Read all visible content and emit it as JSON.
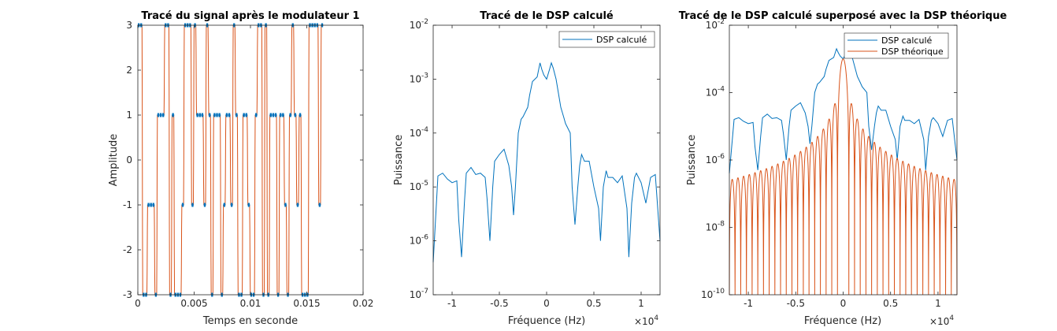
{
  "colors": {
    "blue": "#0072BD",
    "orange": "#D95319"
  },
  "chart_data": [
    {
      "type": "line",
      "title": "Tracé du signal après le modulateur 1",
      "xlabel": "Temps en seconde",
      "ylabel": "Amplitude",
      "xlim": [
        0,
        0.02
      ],
      "ylim": [
        -3,
        3
      ],
      "xticks": [
        0,
        0.005,
        0.01,
        0.015,
        0.02
      ],
      "xtick_labels": [
        "0",
        "0.005",
        "0.01",
        "0.015",
        "0.02"
      ],
      "yticks": [
        -3,
        -2,
        -1,
        0,
        1,
        2,
        3
      ],
      "ytick_labels": [
        "-3",
        "-2",
        "-1",
        "0",
        "1",
        "2",
        "3"
      ],
      "symbol_duration": 0.0005,
      "series": [
        {
          "style": "blue-markers",
          "values": [
            3,
            3,
            -3,
            -3,
            -1,
            -1,
            -1,
            -3,
            1,
            1,
            1,
            3,
            3,
            -3,
            1,
            -3,
            -3,
            -3,
            -1,
            3,
            3,
            3,
            -1,
            3,
            1,
            1,
            1,
            -1,
            3,
            1,
            -3,
            1,
            1,
            1,
            -3,
            -1,
            1,
            1,
            -1,
            3,
            1,
            -3,
            -3,
            1,
            1,
            -1,
            -3,
            -3,
            1,
            3,
            3,
            -3,
            3,
            -3,
            1,
            1,
            1,
            -3,
            1,
            1,
            -1,
            -3,
            1,
            3,
            1,
            -1,
            1,
            -3,
            -3,
            -3,
            3,
            3,
            3,
            3,
            -1,
            3
          ]
        },
        {
          "style": "orange-line",
          "values": [
            3,
            3,
            -3,
            -3,
            -1,
            -1,
            -1,
            -3,
            1,
            1,
            1,
            3,
            3,
            -3,
            1,
            -3,
            -3,
            -3,
            -1,
            3,
            3,
            3,
            -1,
            3,
            1,
            1,
            1,
            -1,
            3,
            1,
            -3,
            1,
            1,
            1,
            -3,
            -1,
            1,
            1,
            -1,
            3,
            1,
            -3,
            -3,
            1,
            1,
            -1,
            -3,
            -3,
            1,
            3,
            3,
            -3,
            3,
            -3,
            1,
            1,
            1,
            -3,
            1,
            1,
            -1,
            -3,
            1,
            3,
            1,
            -1,
            1,
            -3,
            -3,
            -3,
            3,
            3,
            3,
            3,
            -1,
            3
          ]
        }
      ]
    },
    {
      "type": "line",
      "title": "Tracé de le DSP calculé",
      "xlabel": "Fréquence (Hz)",
      "ylabel": "Puissance",
      "x_multiplier": "×10",
      "x_multiplier_exp": "4",
      "xlim": [
        -12000,
        12000
      ],
      "ylog": true,
      "ylim": [
        1e-07,
        0.01
      ],
      "xticks": [
        -10000,
        -5000,
        0,
        5000,
        10000
      ],
      "xtick_labels": [
        "-1",
        "-0.5",
        "0",
        "0.5",
        "1"
      ],
      "yticks": [
        1e-07,
        1e-06,
        1e-05,
        0.0001,
        0.001,
        0.01
      ],
      "ytick_base": "10",
      "ytick_exps": [
        "-7",
        "-6",
        "-5",
        "-4",
        "-3",
        "-2"
      ],
      "legend_position": "top-right",
      "series": [
        {
          "name": "DSP calculé",
          "color_key": "blue",
          "x": [
            -12000,
            -11500,
            -11000,
            -10500,
            -10000,
            -9500,
            -9300,
            -9000,
            -8700,
            -8500,
            -8000,
            -7500,
            -7000,
            -6500,
            -6300,
            -6000,
            -5700,
            -5500,
            -5000,
            -4500,
            -4000,
            -3700,
            -3500,
            -3300,
            -3000,
            -2700,
            -2500,
            -2000,
            -1800,
            -1500,
            -1000,
            -700,
            -500,
            -300,
            0,
            300,
            500,
            700,
            1000,
            1500,
            1800,
            2000,
            2500,
            2700,
            3000,
            3300,
            3500,
            3700,
            4000,
            4500,
            5000,
            5500,
            5700,
            6000,
            6300,
            6500,
            7000,
            7500,
            8000,
            8500,
            8700,
            9000,
            9300,
            9500,
            10000,
            10500,
            11000,
            11500,
            12000
          ],
          "y": [
            4e-07,
            1.6e-05,
            1.8e-05,
            1.4e-05,
            1.2e-05,
            1.3e-05,
            2.5e-06,
            5e-07,
            5e-06,
            1.8e-05,
            2.3e-05,
            1.7e-05,
            1.8e-05,
            1.5e-05,
            6e-06,
            1e-06,
            1e-05,
            3e-05,
            4e-05,
            5e-05,
            2.5e-05,
            1e-05,
            3e-06,
            1e-05,
            0.0001,
            0.00018,
            0.0002,
            0.0003,
            0.0005,
            0.0009,
            0.0011,
            0.002,
            0.0015,
            0.0012,
            0.001,
            0.0015,
            0.002,
            0.0016,
            0.001,
            0.0003,
            0.0002,
            0.00015,
            0.0001,
            1e-05,
            2e-06,
            1e-05,
            2.5e-05,
            4e-05,
            3e-05,
            3e-05,
            1e-05,
            4e-06,
            1e-06,
            1e-05,
            2e-05,
            1.5e-05,
            1.5e-05,
            1.2e-05,
            1.6e-05,
            4e-06,
            5e-07,
            5e-06,
            1.5e-05,
            1.8e-05,
            1.2e-05,
            5e-06,
            1.5e-05,
            1.7e-05,
            1e-06
          ]
        }
      ]
    },
    {
      "type": "line",
      "title": "Tracé de le DSP calculé superposé avec la DSP théorique",
      "xlabel": "Fréquence (Hz)",
      "ylabel": "Puissance",
      "x_multiplier": "×10",
      "x_multiplier_exp": "4",
      "xlim": [
        -12000,
        12000
      ],
      "ylog": true,
      "ylim": [
        1e-10,
        0.01
      ],
      "xticks": [
        -10000,
        -5000,
        0,
        5000,
        10000
      ],
      "xtick_labels": [
        "-1",
        "-0.5",
        "0",
        "0.5",
        "1"
      ],
      "yticks": [
        1e-10,
        1e-08,
        1e-06,
        0.0001,
        0.01
      ],
      "ytick_base": "10",
      "ytick_exps": [
        "-10",
        "-8",
        "-6",
        "-4",
        "-2"
      ],
      "legend_position": "top-right",
      "theory": {
        "peak": 0.001,
        "lobe_period_hz": 600,
        "floor_at_edge": 2e-07
      },
      "series": [
        {
          "name": "DSP calculé",
          "color_key": "blue",
          "x": [
            -12000,
            -11500,
            -11000,
            -10500,
            -10000,
            -9500,
            -9300,
            -9000,
            -8700,
            -8500,
            -8000,
            -7500,
            -7000,
            -6500,
            -6300,
            -6000,
            -5700,
            -5500,
            -5000,
            -4500,
            -4000,
            -3700,
            -3500,
            -3300,
            -3000,
            -2700,
            -2500,
            -2000,
            -1800,
            -1500,
            -1000,
            -700,
            -500,
            -300,
            0,
            300,
            500,
            700,
            1000,
            1500,
            1800,
            2000,
            2500,
            2700,
            3000,
            3300,
            3500,
            3700,
            4000,
            4500,
            5000,
            5500,
            5700,
            6000,
            6300,
            6500,
            7000,
            7500,
            8000,
            8500,
            8700,
            9000,
            9300,
            9500,
            10000,
            10500,
            11000,
            11500,
            12000
          ],
          "y": [
            4e-07,
            1.6e-05,
            1.8e-05,
            1.4e-05,
            1.2e-05,
            1.3e-05,
            2.5e-06,
            5e-07,
            5e-06,
            1.8e-05,
            2.3e-05,
            1.7e-05,
            1.8e-05,
            1.5e-05,
            6e-06,
            1e-06,
            1e-05,
            3e-05,
            4e-05,
            5e-05,
            2.5e-05,
            1e-05,
            3e-06,
            1e-05,
            0.0001,
            0.00018,
            0.0002,
            0.0003,
            0.0005,
            0.0009,
            0.0011,
            0.002,
            0.0015,
            0.0012,
            0.001,
            0.0015,
            0.002,
            0.0016,
            0.001,
            0.0003,
            0.0002,
            0.00015,
            0.0001,
            1e-05,
            2e-06,
            1e-05,
            2.5e-05,
            4e-05,
            3e-05,
            3e-05,
            1e-05,
            4e-06,
            1e-06,
            1e-05,
            2e-05,
            1.5e-05,
            1.5e-05,
            1.2e-05,
            1.6e-05,
            4e-06,
            5e-07,
            5e-06,
            1.5e-05,
            1.8e-05,
            1.2e-05,
            5e-06,
            1.5e-05,
            1.7e-05,
            1e-06
          ]
        },
        {
          "name": "DSP théorique",
          "color_key": "orange"
        }
      ]
    }
  ]
}
